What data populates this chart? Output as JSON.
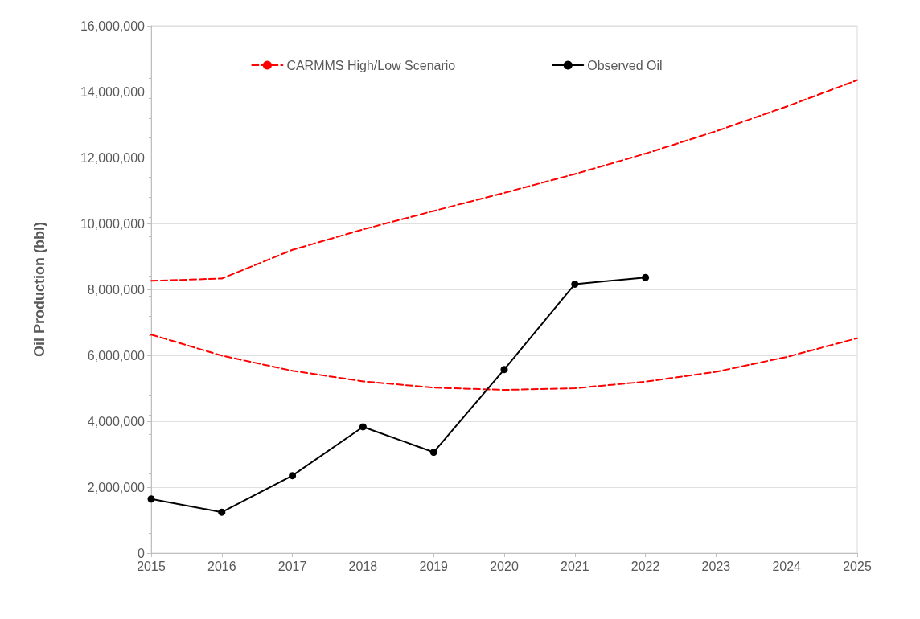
{
  "chart_data": {
    "type": "line",
    "ylabel": "Oil Production (bbl)",
    "x": [
      2015,
      2016,
      2017,
      2018,
      2019,
      2020,
      2021,
      2022,
      2023,
      2024,
      2025
    ],
    "series": [
      {
        "name": "CARMMS High/Low Scenario",
        "color": "#ff0000",
        "line_style": "dashed",
        "marker": "none",
        "values": [
          8260000,
          8330000,
          9200000,
          9820000,
          10380000,
          10930000,
          11500000,
          12120000,
          12800000,
          13550000,
          14350000
        ]
      },
      {
        "color": "#ff0000",
        "line_style": "dashed",
        "marker": "none",
        "values": [
          6630000,
          5990000,
          5530000,
          5210000,
          5020000,
          4950000,
          5000000,
          5200000,
          5500000,
          5950000,
          6520000
        ]
      },
      {
        "name": "Observed Oil",
        "color": "#000000",
        "line_style": "solid",
        "marker": "circle",
        "values": [
          1640000,
          1240000,
          2350000,
          3830000,
          3060000,
          5570000,
          8160000,
          8360000,
          null,
          null,
          null
        ]
      }
    ],
    "xlim": [
      2015,
      2025
    ],
    "xticks": [
      2015,
      2016,
      2017,
      2018,
      2019,
      2020,
      2021,
      2022,
      2023,
      2024,
      2025
    ],
    "ylim": [
      0,
      16000000
    ],
    "yticks": [
      0,
      {
        "value": 2000000,
        "label": "2,000,000"
      },
      {
        "value": 4000000,
        "label": "4,000,000"
      },
      {
        "value": 6000000,
        "label": "6,000,000"
      },
      {
        "value": 8000000,
        "label": "8,000,000"
      },
      {
        "value": 10000000,
        "label": "10,000,000"
      },
      {
        "value": 12000000,
        "label": "12,000,000"
      },
      {
        "value": 14000000,
        "label": "14,000,000"
      },
      {
        "value": 16000000,
        "label": "16,000,000"
      }
    ],
    "grid": "y",
    "legend": "top"
  }
}
